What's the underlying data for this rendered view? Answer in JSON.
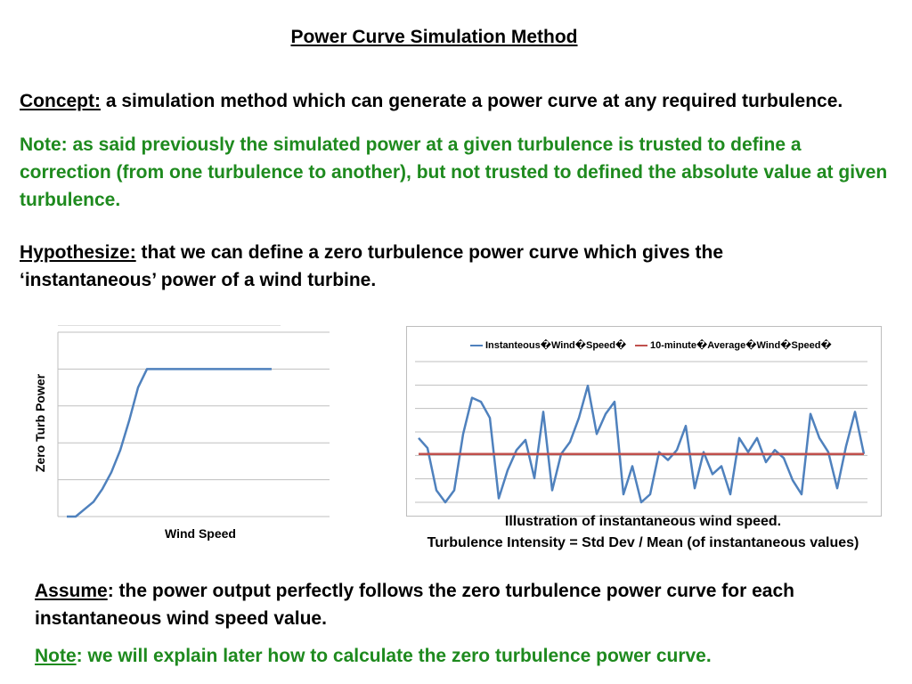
{
  "title": "Power Curve Simulation Method",
  "concept": {
    "label": "Concept:",
    "text": " a simulation method which can generate a power curve at any required turbulence."
  },
  "note1": "Note: as said previously the simulated power at a given turbulence is trusted to define a correction (from one turbulence to another), but not trusted to defined the absolute value at given turbulence.",
  "hypothesize": {
    "label": "Hypothesize:",
    "text": " that we can define a zero turbulence power curve which gives the ‘instantaneous’ power of a wind turbine."
  },
  "assume": {
    "label": "Assume",
    "text": ": the power output perfectly follows the zero turbulence power curve for each instantaneous wind speed value."
  },
  "note2": {
    "label": "Note",
    "text": ": we will explain later how to calculate the zero turbulence power curve."
  },
  "captions": {
    "line1": "Illustration of instantaneous wind speed.",
    "line2": "Turbulence Intensity = Std Dev / Mean (of instantaneous values)"
  },
  "colors": {
    "accent_green": "#1e8a1e",
    "series_blue": "#4f81bd",
    "series_red": "#c0504d",
    "grid": "#bfbfbf"
  },
  "chart_data": [
    {
      "type": "line",
      "title": "",
      "xlabel": "Wind Speed",
      "ylabel": "Zero Turb Power",
      "grid": true,
      "ylim": [
        0,
        5
      ],
      "series": [
        {
          "values": [
            0,
            0,
            0.2,
            0.4,
            0.75,
            1.2,
            1.8,
            2.6,
            3.5,
            4.0,
            4.0,
            4.0,
            4.0,
            4.0,
            4.0,
            4.0,
            4.0,
            4.0,
            4.0,
            4.0,
            4.0,
            4.0,
            4.0,
            4.0
          ]
        }
      ]
    },
    {
      "type": "line",
      "title": "",
      "grid": true,
      "legend_position": "top",
      "ylim": [
        0,
        7
      ],
      "series": [
        {
          "name": "Instanteous�Wind�Speed�",
          "values": [
            3.2,
            2.7,
            0.6,
            0.0,
            0.6,
            3.4,
            5.2,
            5.0,
            4.2,
            0.2,
            1.6,
            2.6,
            3.1,
            1.2,
            4.5,
            0.6,
            2.4,
            3.0,
            4.2,
            5.8,
            3.4,
            4.4,
            5.0,
            0.4,
            1.8,
            0.0,
            0.4,
            2.5,
            2.1,
            2.6,
            3.8,
            0.7,
            2.5,
            1.4,
            1.8,
            0.4,
            3.2,
            2.5,
            3.2,
            2.0,
            2.6,
            2.2,
            1.1,
            0.4,
            4.4,
            3.2,
            2.5,
            0.7,
            2.8,
            4.5,
            2.4
          ]
        },
        {
          "name": "10-minute�Average�Wind�Speed�",
          "values": [
            2.4,
            2.4
          ]
        }
      ]
    }
  ]
}
